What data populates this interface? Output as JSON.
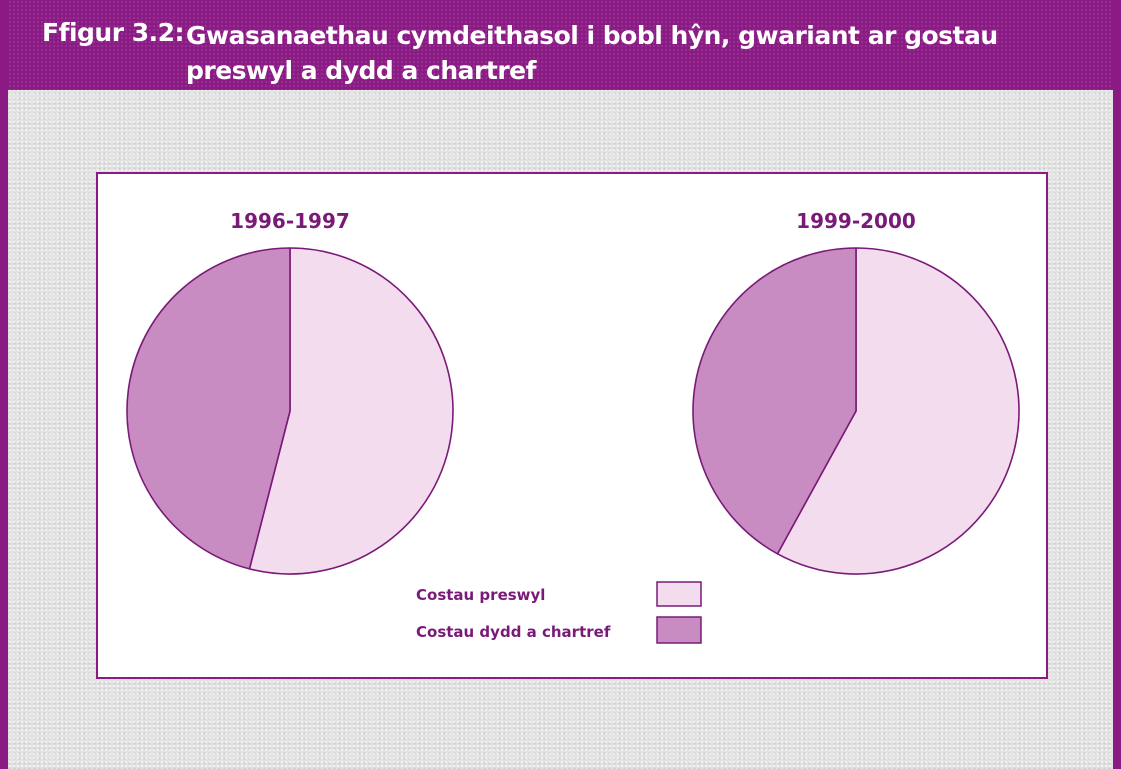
{
  "figure": {
    "number": "Ffigur 3.2:",
    "title": "Gwasanaethau cymdeithasol i bobl hŷn, gwariant ar gostau preswyl a dydd a chartref"
  },
  "colors": {
    "header": "#8b1a84",
    "residential": "#f3dcee",
    "day_home": "#c98cc2",
    "outline": "#7a1a78"
  },
  "chart_data": [
    {
      "type": "pie",
      "title": "1996-1997",
      "labels": [
        "Costau preswyl",
        "Costau dydd a chartref"
      ],
      "values": [
        54,
        46
      ]
    },
    {
      "type": "pie",
      "title": "1999-2000",
      "labels": [
        "Costau preswyl",
        "Costau dydd a chartref"
      ],
      "values": [
        58,
        42
      ]
    }
  ],
  "legend": [
    {
      "label": "Costau preswyl",
      "color": "#f3dcee"
    },
    {
      "label": "Costau dydd a chartref",
      "color": "#c98cc2"
    }
  ]
}
